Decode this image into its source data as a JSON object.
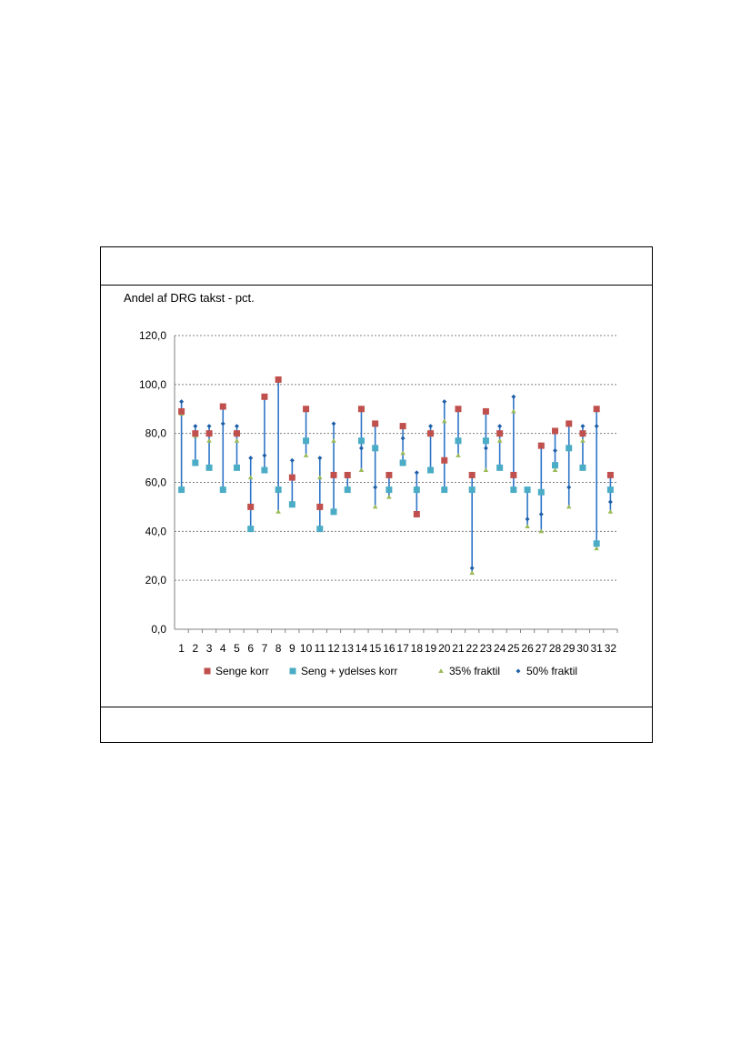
{
  "chart_data": {
    "type": "scatter",
    "ylabel": "Andel af DRG takst - pct.",
    "ylim": [
      0,
      120
    ],
    "yticks": [
      "0,0",
      "20,0",
      "40,0",
      "60,0",
      "80,0",
      "100,0",
      "120,0"
    ],
    "categories": [
      "1",
      "2",
      "3",
      "4",
      "5",
      "6",
      "7",
      "8",
      "9",
      "10",
      "11",
      "12",
      "13",
      "14",
      "15",
      "16",
      "17",
      "18",
      "19",
      "20",
      "21",
      "22",
      "23",
      "24",
      "25",
      "26",
      "27",
      "28",
      "29",
      "30",
      "31",
      "32"
    ],
    "grid": true,
    "legend_position": "bottom",
    "series": [
      {
        "name": "Senge korr",
        "color": "#c0504d",
        "marker": "square",
        "values": [
          89,
          80,
          80,
          91,
          80,
          50,
          95,
          102,
          62,
          90,
          50,
          63,
          63,
          90,
          84,
          63,
          83,
          47,
          80,
          69,
          90,
          63,
          89,
          80,
          63,
          null,
          75,
          81,
          84,
          80,
          90,
          63
        ]
      },
      {
        "name": "Seng + ydelses korr",
        "color": "#4bacc6",
        "marker": "square",
        "values": [
          57,
          68,
          66,
          57,
          66,
          41,
          65,
          57,
          51,
          77,
          41,
          48,
          57,
          77,
          74,
          57,
          68,
          57,
          65,
          57,
          77,
          57,
          77,
          66,
          57,
          57,
          56,
          67,
          74,
          66,
          35,
          57
        ]
      },
      {
        "name": "35% fraktil",
        "color": "#9bbb59",
        "marker": "triangle",
        "values": [
          88,
          79,
          77,
          null,
          77,
          62,
          null,
          48,
          null,
          71,
          62,
          77,
          null,
          65,
          50,
          54,
          72,
          null,
          null,
          85,
          71,
          23,
          65,
          77,
          89,
          42,
          40,
          65,
          50,
          77,
          33,
          48
        ]
      },
      {
        "name": "50% fraktil",
        "color": "#1f5fa8",
        "marker": "diamond",
        "values": [
          93,
          83,
          83,
          84,
          83,
          70,
          71,
          null,
          69,
          null,
          70,
          84,
          null,
          74,
          58,
          null,
          78,
          64,
          83,
          93,
          null,
          25,
          74,
          83,
          95,
          45,
          47,
          73,
          58,
          83,
          83,
          52
        ]
      }
    ]
  }
}
